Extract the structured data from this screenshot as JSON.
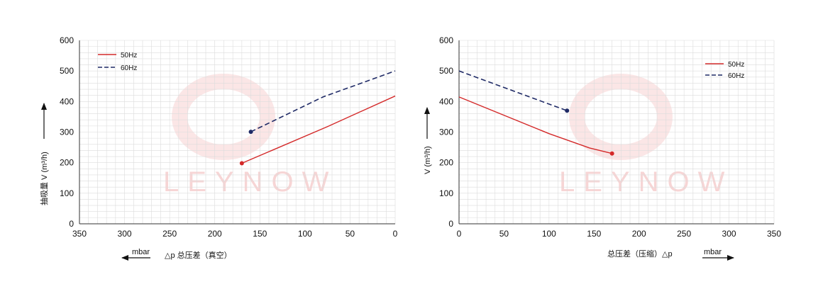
{
  "colors": {
    "series_50hz": "#d42a2a",
    "series_60hz": "#1f2a66",
    "grid": "#dcdcdc",
    "watermark": "#f7d5d5"
  },
  "watermark_text": "LEYNOW",
  "chart_data": [
    {
      "type": "line",
      "title": "",
      "ylabel": "抽吸量 V (m³/h)",
      "xlabel": "△p 总压差（真空）",
      "x_unit": "mbar",
      "xlim": [
        350,
        0
      ],
      "ylim": [
        0,
        600
      ],
      "x_ticks": [
        350,
        300,
        250,
        200,
        150,
        100,
        50,
        0
      ],
      "y_ticks": [
        0,
        100,
        200,
        300,
        400,
        500,
        600
      ],
      "grid": true,
      "legend_position": "top-left",
      "series": [
        {
          "name": "50Hz",
          "style": "solid",
          "x": [
            170,
            75,
            0
          ],
          "y": [
            198,
            318,
            418
          ]
        },
        {
          "name": "60Hz",
          "style": "dashed",
          "x": [
            160,
            80,
            0
          ],
          "y": [
            301,
            415,
            500
          ]
        }
      ]
    },
    {
      "type": "line",
      "title": "",
      "ylabel": "V (m³/h)",
      "xlabel": "总压差（压缩）△p",
      "x_unit": "mbar",
      "xlim": [
        0,
        350
      ],
      "ylim": [
        0,
        600
      ],
      "x_ticks": [
        0,
        50,
        100,
        150,
        200,
        250,
        300,
        350
      ],
      "y_ticks": [
        0,
        100,
        200,
        300,
        400,
        500,
        600
      ],
      "grid": true,
      "legend_position": "top-right",
      "series": [
        {
          "name": "50Hz",
          "style": "solid",
          "x": [
            0,
            100,
            145,
            170
          ],
          "y": [
            415,
            295,
            248,
            230
          ]
        },
        {
          "name": "60Hz",
          "style": "dashed",
          "x": [
            0,
            120
          ],
          "y": [
            500,
            370
          ]
        }
      ]
    }
  ]
}
